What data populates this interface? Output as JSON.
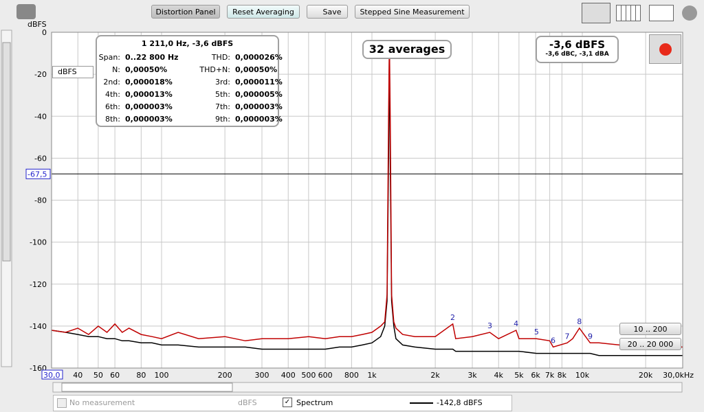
{
  "toolbar": {
    "buttons": [
      "Distortion Panel",
      "Reset Averaging",
      "Save",
      "Stepped Sine Measurement"
    ]
  },
  "info": {
    "header": "1 211,0 Hz, -3,6 dBFS",
    "rows": [
      [
        "Span:",
        "0..22 800 Hz",
        "THD:",
        "0,000026%"
      ],
      [
        "N:",
        "0,00050%",
        "THD+N:",
        "0,00050%"
      ],
      [
        "2nd:",
        "0,000018%",
        "3rd:",
        "0,000011%"
      ],
      [
        "4th:",
        "0,000013%",
        "5th:",
        "0,000005%"
      ],
      [
        "6th:",
        "0,000003%",
        "7th:",
        "0,000003%"
      ],
      [
        "8th:",
        "0,000003%",
        "9th:",
        "0,000003%"
      ]
    ]
  },
  "averages": "32 averages",
  "level": {
    "main": "-3,6 dBFS",
    "sub": "-3,6 dBC, -3,1 dBA"
  },
  "unit_select": "dBFS",
  "plot": {
    "y_axis_label": "dBFS",
    "log_x": true,
    "grid": true,
    "xlim": [
      30,
      30000
    ],
    "ylim": [
      -160,
      0
    ],
    "xticks": [
      {
        "value": 30,
        "label": "30,0"
      },
      40,
      50,
      60,
      80,
      100,
      200,
      300,
      400,
      500,
      600,
      800,
      {
        "value": 1000,
        "label": "1k"
      },
      {
        "value": 2000,
        "label": "2k"
      },
      {
        "value": 3000,
        "label": "3k"
      },
      {
        "value": 4000,
        "label": "4k"
      },
      {
        "value": 5000,
        "label": "5k"
      },
      {
        "value": 6000,
        "label": "6k"
      },
      {
        "value": 7000,
        "label": "7k"
      },
      {
        "value": 8000,
        "label": "8k"
      },
      {
        "value": 10000,
        "label": "10k"
      },
      {
        "value": 20000,
        "label": "20k"
      },
      {
        "value": 30000,
        "label": "30,0kHz"
      }
    ],
    "yticks": [
      0,
      -20,
      -40,
      -60,
      -80,
      -100,
      -120,
      -140,
      -160
    ],
    "cursor": {
      "value": -67.5,
      "label": "-67,5"
    },
    "x": [
      30,
      35,
      40,
      45,
      50,
      55,
      60,
      65,
      70,
      80,
      90,
      100,
      120,
      150,
      200,
      250,
      300,
      400,
      500,
      600,
      700,
      800,
      900,
      1000,
      1100,
      1150,
      1180,
      1200,
      1211,
      1222,
      1240,
      1270,
      1300,
      1400,
      1600,
      2000,
      2422,
      2500,
      3000,
      3633,
      4000,
      4844,
      5000,
      6055,
      7000,
      7266,
      8477,
      9000,
      9688,
      10899,
      12000,
      15000,
      20000,
      25000,
      30000
    ],
    "traces": [
      {
        "color": "#000000",
        "values": [
          -142,
          -143,
          -144,
          -145,
          -145,
          -146,
          -146,
          -147,
          -147,
          -148,
          -148,
          -149,
          -149,
          -150,
          -150,
          -150,
          -151,
          -151,
          -151,
          -151,
          -150,
          -150,
          -149,
          -148,
          -145,
          -140,
          -128,
          -60,
          -5,
          -60,
          -128,
          -140,
          -146,
          -149,
          -150,
          -151,
          -151,
          -152,
          -152,
          -152,
          -152,
          -152,
          -152,
          -153,
          -153,
          -153,
          -153,
          -153,
          -153,
          -153,
          -154,
          -154,
          -154,
          -154,
          -154
        ]
      },
      {
        "color": "#c00000",
        "values": [
          -142,
          -143,
          -141,
          -144,
          -140,
          -143,
          -139,
          -143,
          -141,
          -144,
          -145,
          -146,
          -143,
          -146,
          -145,
          -147,
          -146,
          -146,
          -145,
          -146,
          -145,
          -145,
          -144,
          -143,
          -140,
          -138,
          -125,
          -40,
          -3.6,
          -40,
          -125,
          -138,
          -141,
          -144,
          -145,
          -145,
          -139,
          -146,
          -145,
          -143,
          -146,
          -142,
          -146,
          -146,
          -147,
          -150,
          -148,
          -146,
          -141,
          -148,
          -148,
          -149,
          -149,
          -150,
          -150
        ]
      }
    ],
    "harmonics": [
      {
        "label": "2",
        "x": 2422,
        "y": -139
      },
      {
        "label": "3",
        "x": 3633,
        "y": -143
      },
      {
        "label": "4",
        "x": 4844,
        "y": -142
      },
      {
        "label": "5",
        "x": 6055,
        "y": -146
      },
      {
        "label": "6",
        "x": 7266,
        "y": -150
      },
      {
        "label": "7",
        "x": 8477,
        "y": -148
      },
      {
        "label": "8",
        "x": 9688,
        "y": -141
      },
      {
        "label": "9",
        "x": 10899,
        "y": -148
      }
    ],
    "range_buttons": [
      "10 .. 200",
      "20 .. 20 000"
    ]
  },
  "legend": {
    "no_measurement": "No measurement",
    "unit": "dBFS",
    "spectrum": "Spectrum",
    "reading": "-142,8 dBFS"
  }
}
